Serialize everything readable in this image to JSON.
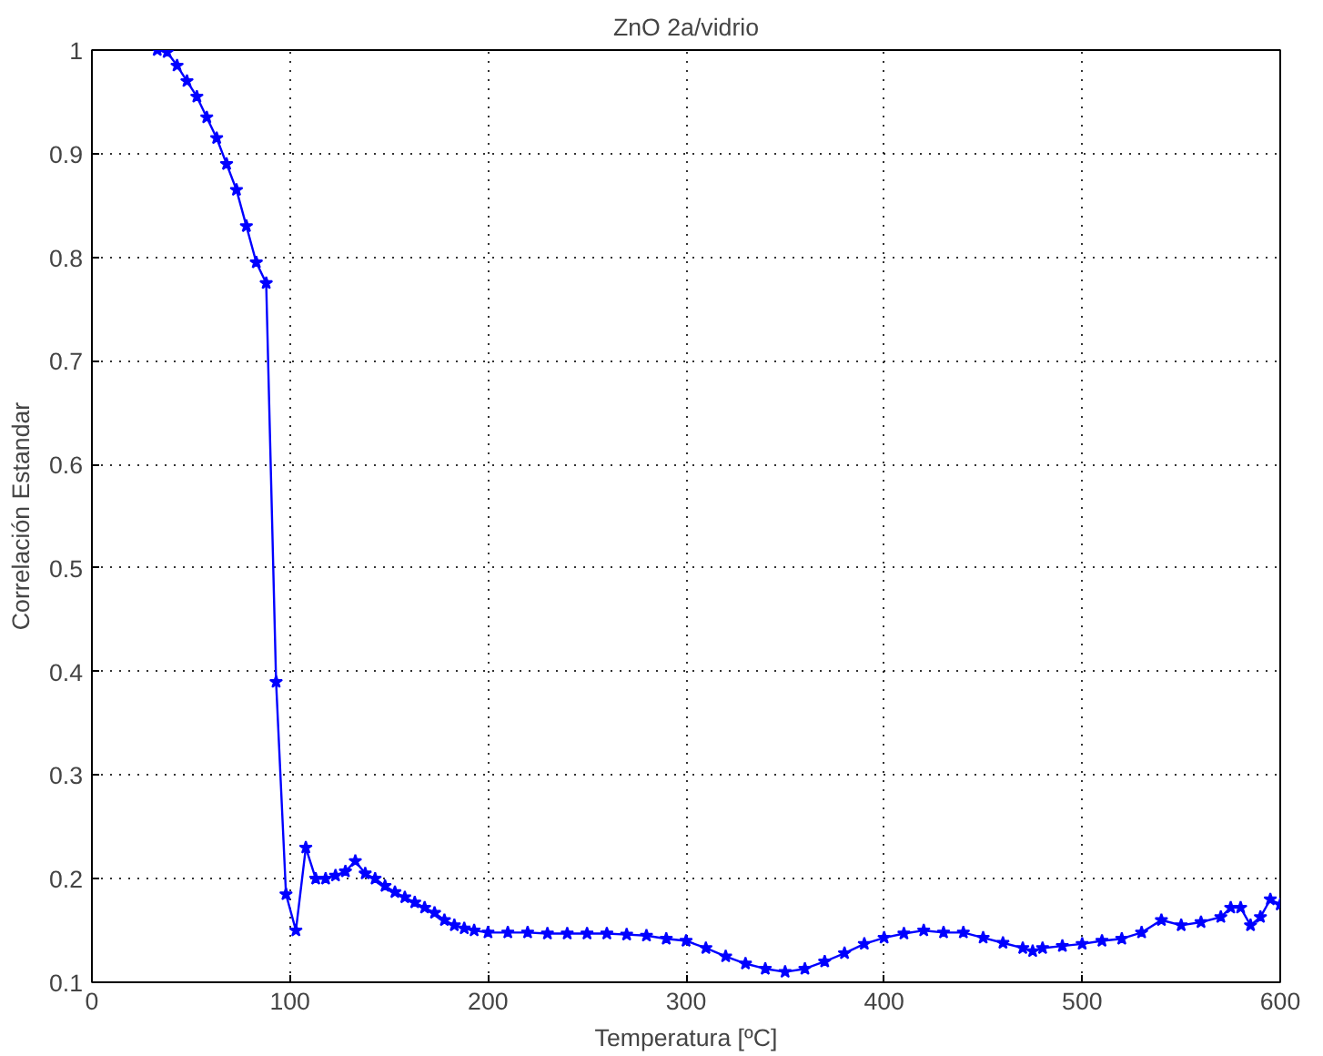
{
  "chart_data": {
    "type": "line",
    "title": "ZnO 2a/vidrio",
    "xlabel": "Temperatura [ºC]",
    "ylabel": "Correlación Estandar",
    "x": [
      33,
      38,
      43,
      48,
      53,
      58,
      63,
      68,
      73,
      78,
      83,
      88,
      93,
      98,
      103,
      108,
      113,
      118,
      123,
      128,
      133,
      138,
      143,
      148,
      153,
      158,
      163,
      168,
      173,
      178,
      183,
      188,
      193,
      200,
      210,
      220,
      230,
      240,
      250,
      260,
      270,
      280,
      290,
      300,
      310,
      320,
      330,
      340,
      350,
      360,
      370,
      380,
      390,
      400,
      410,
      420,
      430,
      440,
      450,
      460,
      470,
      475,
      480,
      490,
      500,
      510,
      520,
      530,
      540,
      550,
      560,
      570,
      575,
      580,
      585,
      590,
      595,
      600
    ],
    "series": [
      {
        "color": "#0000ff",
        "values": [
          1.0,
          0.998,
          0.985,
          0.97,
          0.955,
          0.935,
          0.915,
          0.89,
          0.865,
          0.83,
          0.795,
          0.775,
          0.39,
          0.185,
          0.15,
          0.23,
          0.2,
          0.2,
          0.203,
          0.207,
          0.217,
          0.205,
          0.2,
          0.193,
          0.187,
          0.182,
          0.177,
          0.172,
          0.167,
          0.16,
          0.155,
          0.152,
          0.15,
          0.148,
          0.148,
          0.148,
          0.147,
          0.147,
          0.147,
          0.147,
          0.146,
          0.145,
          0.142,
          0.14,
          0.133,
          0.125,
          0.118,
          0.113,
          0.11,
          0.113,
          0.12,
          0.128,
          0.137,
          0.143,
          0.147,
          0.15,
          0.148,
          0.148,
          0.143,
          0.138,
          0.133,
          0.13,
          0.133,
          0.135,
          0.137,
          0.14,
          0.142,
          0.148,
          0.16,
          0.155,
          0.158,
          0.163,
          0.172,
          0.172,
          0.155,
          0.163,
          0.18,
          0.175
        ]
      }
    ],
    "xlim": [
      0,
      600
    ],
    "ylim": [
      0.1,
      1
    ],
    "xticks": [
      0,
      100,
      200,
      300,
      400,
      500,
      600
    ],
    "yticks": [
      0.1,
      0.2,
      0.3,
      0.4,
      0.5,
      0.6,
      0.7,
      0.8,
      0.9,
      1
    ],
    "grid": true,
    "marker": "star",
    "line_style": "solid"
  }
}
